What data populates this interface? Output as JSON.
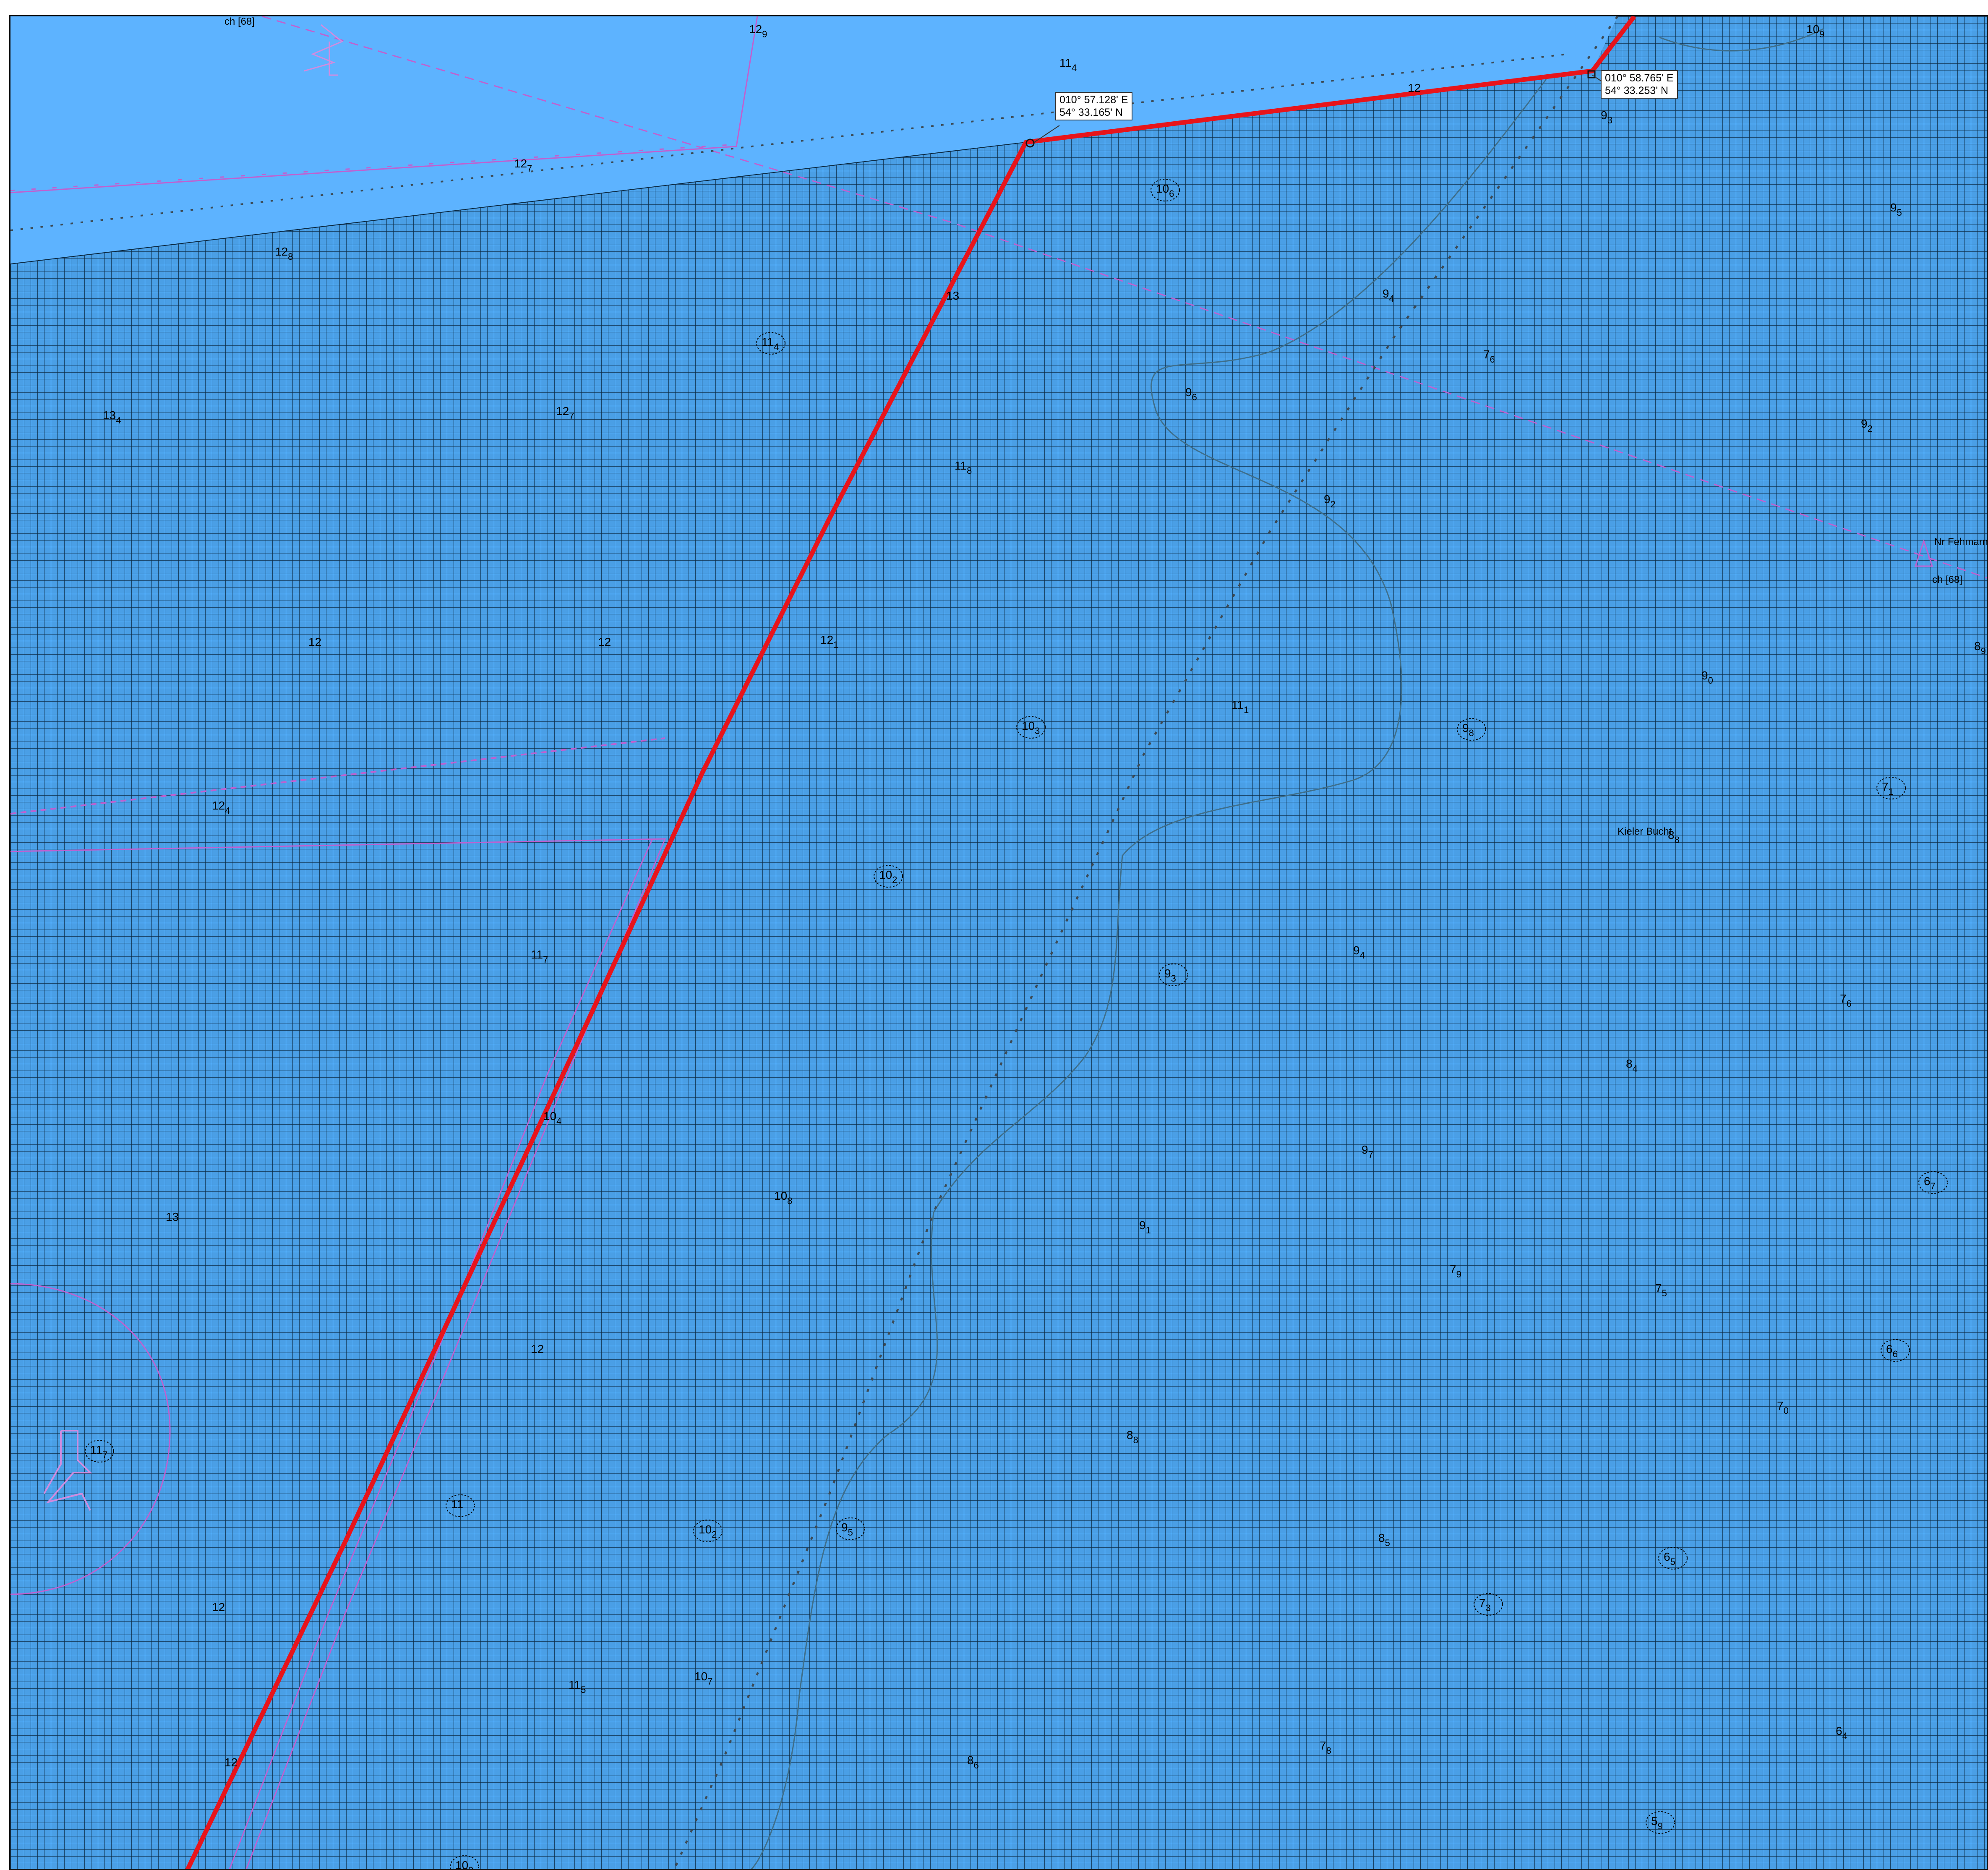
{
  "map": {
    "colors": {
      "deep_water": "#5db3ff",
      "grid_water": "#4a9fe6",
      "grid_line": "#0b2a44",
      "route": "#e8141b",
      "boundary": "#3c4a55",
      "contour": "#3e6e8a",
      "magenta_feature": "#c060d0"
    },
    "route_waypoints": [
      {
        "lon": "010° 57.128' E",
        "lat": "54° 33.165' N"
      },
      {
        "lon": "010° 58.765' E",
        "lat": "54° 33.253' N"
      }
    ],
    "place_labels": {
      "kieler_bucht": "Kieler Bucht",
      "nr_fehmarn": "Nr Fehmarn",
      "ch68_top": "ch [68]",
      "ch68_right": "ch [68]"
    },
    "soundings": [
      {
        "main": "11",
        "sub": "4"
      },
      {
        "main": "12",
        "sub": "9"
      },
      {
        "main": "12",
        "sub": ""
      },
      {
        "main": "10",
        "sub": "9"
      },
      {
        "main": "12",
        "sub": "7"
      },
      {
        "main": "9",
        "sub": "3"
      },
      {
        "main": "10",
        "sub": "6"
      },
      {
        "main": "9",
        "sub": "5"
      },
      {
        "main": "12",
        "sub": "8"
      },
      {
        "main": "13",
        "sub": ""
      },
      {
        "main": "9",
        "sub": "4"
      },
      {
        "main": "11",
        "sub": "4"
      },
      {
        "main": "7",
        "sub": "6"
      },
      {
        "main": "13",
        "sub": "4"
      },
      {
        "main": "12",
        "sub": "7"
      },
      {
        "main": "9",
        "sub": "6"
      },
      {
        "main": "9",
        "sub": "2"
      },
      {
        "main": "11",
        "sub": "8"
      },
      {
        "main": "9",
        "sub": "2"
      },
      {
        "main": "12",
        "sub": ""
      },
      {
        "main": "12",
        "sub": ""
      },
      {
        "main": "12",
        "sub": "1"
      },
      {
        "main": "8",
        "sub": "9"
      },
      {
        "main": "9",
        "sub": "0"
      },
      {
        "main": "11",
        "sub": "1"
      },
      {
        "main": "10",
        "sub": "3"
      },
      {
        "main": "9",
        "sub": "8"
      },
      {
        "main": "7",
        "sub": "1"
      },
      {
        "main": "12",
        "sub": "4"
      },
      {
        "main": "8",
        "sub": "8"
      },
      {
        "main": "10",
        "sub": "2"
      },
      {
        "main": "11",
        "sub": "7"
      },
      {
        "main": "9",
        "sub": "4"
      },
      {
        "main": "9",
        "sub": "3"
      },
      {
        "main": "7",
        "sub": "6"
      },
      {
        "main": "8",
        "sub": "4"
      },
      {
        "main": "10",
        "sub": "4"
      },
      {
        "main": "9",
        "sub": "7"
      },
      {
        "main": "6",
        "sub": "7"
      },
      {
        "main": "13",
        "sub": ""
      },
      {
        "main": "10",
        "sub": "8"
      },
      {
        "main": "9",
        "sub": "1"
      },
      {
        "main": "7",
        "sub": "9"
      },
      {
        "main": "7",
        "sub": "5"
      },
      {
        "main": "6",
        "sub": "6"
      },
      {
        "main": "12",
        "sub": ""
      },
      {
        "main": "7",
        "sub": "0"
      },
      {
        "main": "11",
        "sub": "7"
      },
      {
        "main": "8",
        "sub": "8"
      },
      {
        "main": "11",
        "sub": ""
      },
      {
        "main": "10",
        "sub": "2"
      },
      {
        "main": "9",
        "sub": "5"
      },
      {
        "main": "8",
        "sub": "5"
      },
      {
        "main": "6",
        "sub": "5"
      },
      {
        "main": "12",
        "sub": ""
      },
      {
        "main": "7",
        "sub": "3"
      },
      {
        "main": "11",
        "sub": "5"
      },
      {
        "main": "10",
        "sub": "7"
      },
      {
        "main": "12",
        "sub": ""
      },
      {
        "main": "8",
        "sub": "6"
      },
      {
        "main": "7",
        "sub": "8"
      },
      {
        "main": "6",
        "sub": "4"
      },
      {
        "main": "10",
        "sub": "9"
      },
      {
        "main": "5",
        "sub": "9"
      },
      {
        "main": "8",
        "sub": "0"
      }
    ]
  }
}
